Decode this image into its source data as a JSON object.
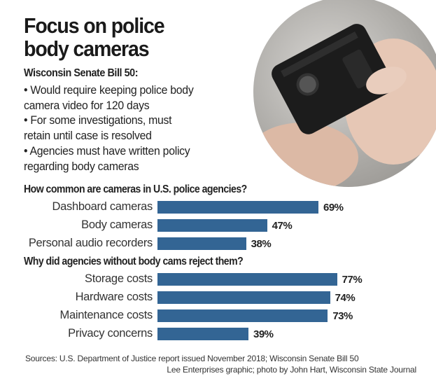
{
  "title": "Focus on police body cameras",
  "title_lines": [
    "Focus on police",
    "body cameras"
  ],
  "bill": {
    "heading": "Wisconsin Senate Bill 50:",
    "bullets": [
      "• Would require keeping police body",
      "camera video for 120 days",
      "• For some investigations, must",
      "retain until case is resolved",
      "• Agencies must have written policy",
      "regarding body cameras"
    ]
  },
  "colors": {
    "bar": "#336594"
  },
  "chart_data": [
    {
      "type": "bar",
      "orientation": "horizontal",
      "title": "How common are cameras in U.S. police agencies?",
      "categories": [
        "Dashboard cameras",
        "Body cameras",
        "Personal audio recorders"
      ],
      "values": [
        69,
        47,
        38
      ],
      "labels": [
        "69%",
        "47%",
        "38%"
      ],
      "unit": "%"
    },
    {
      "type": "bar",
      "orientation": "horizontal",
      "title": "Why did agencies without body cams reject them?",
      "categories": [
        "Storage costs",
        "Hardware costs",
        "Maintenance costs",
        "Privacy concerns"
      ],
      "values": [
        77,
        74,
        73,
        39
      ],
      "labels": [
        "77%",
        "74%",
        "73%",
        "39%"
      ],
      "unit": "%"
    }
  ],
  "footer": {
    "sources": "Sources: U.S. Department of Justice report issued November 2018; Wisconsin Senate Bill 50",
    "credit": "Lee Enterprises graphic; photo by John Hart, Wisconsin State Journal"
  }
}
